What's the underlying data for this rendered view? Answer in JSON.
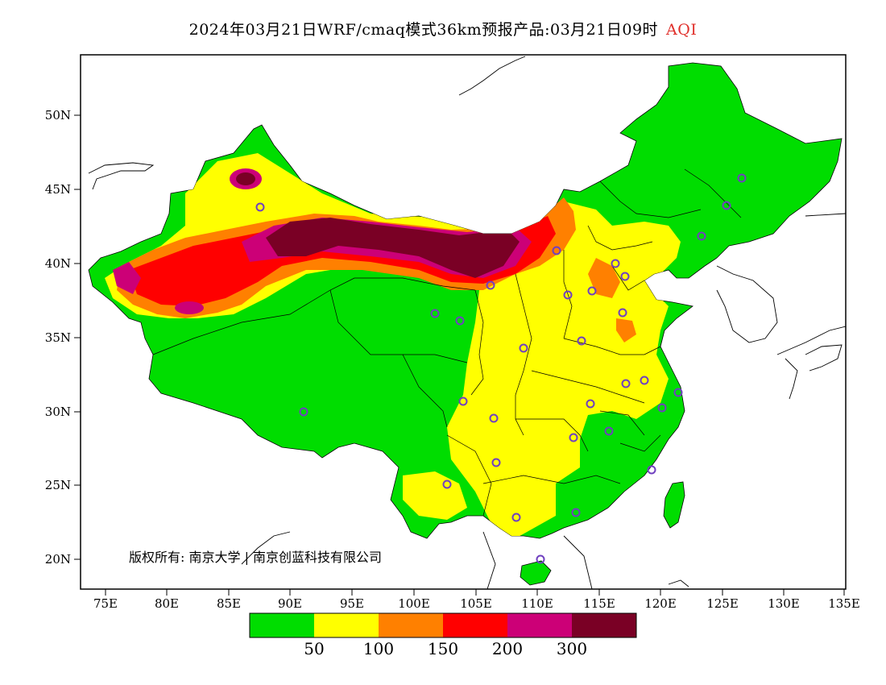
{
  "title": {
    "main": "2024年03月21日WRF/cmaq模式36km预报产品:03月21日09时",
    "variable": "AQI"
  },
  "map": {
    "lat_ticks": [
      "50N",
      "45N",
      "40N",
      "35N",
      "30N",
      "25N",
      "20N"
    ],
    "lon_ticks": [
      "75E",
      "80E",
      "85E",
      "90E",
      "95E",
      "100E",
      "105E",
      "110E",
      "115E",
      "120E",
      "125E",
      "130E",
      "135E"
    ],
    "copyright": "版权所有: 南京大学 | 南京创蓝科技有限公司",
    "colors": {
      "sea": "#ffffff",
      "border": "#000000"
    }
  },
  "colorbar": {
    "colors": [
      "#00dd00",
      "#ffff00",
      "#ff8000",
      "#ff0000",
      "#cc0077",
      "#7a0025"
    ],
    "labels": [
      "50",
      "100",
      "150",
      "200",
      "300"
    ]
  }
}
